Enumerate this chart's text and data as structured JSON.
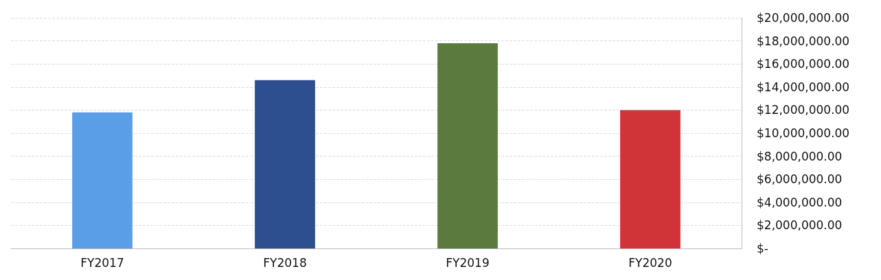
{
  "chart_data": {
    "type": "bar",
    "categories": [
      "FY2017",
      "FY2018",
      "FY2019",
      "FY2020"
    ],
    "values": [
      11800000,
      14600000,
      17800000,
      12000000
    ],
    "colors": [
      "#5b9ee8",
      "#2e4f8f",
      "#5a7a3e",
      "#d13438"
    ],
    "ylim": [
      0,
      20000000
    ],
    "yticks": [
      {
        "value": 0,
        "label": "$-"
      },
      {
        "value": 2000000,
        "label": "$2,000,000.00"
      },
      {
        "value": 4000000,
        "label": "$4,000,000.00"
      },
      {
        "value": 6000000,
        "label": "$6,000,000.00"
      },
      {
        "value": 8000000,
        "label": "$8,000,000.00"
      },
      {
        "value": 10000000,
        "label": "$10,000,000.00"
      },
      {
        "value": 12000000,
        "label": "$12,000,000.00"
      },
      {
        "value": 14000000,
        "label": "$14,000,000.00"
      },
      {
        "value": 16000000,
        "label": "$16,000,000.00"
      },
      {
        "value": 18000000,
        "label": "$18,000,000.00"
      },
      {
        "value": 20000000,
        "label": "$20,000,000.00"
      }
    ],
    "grid": "y"
  }
}
